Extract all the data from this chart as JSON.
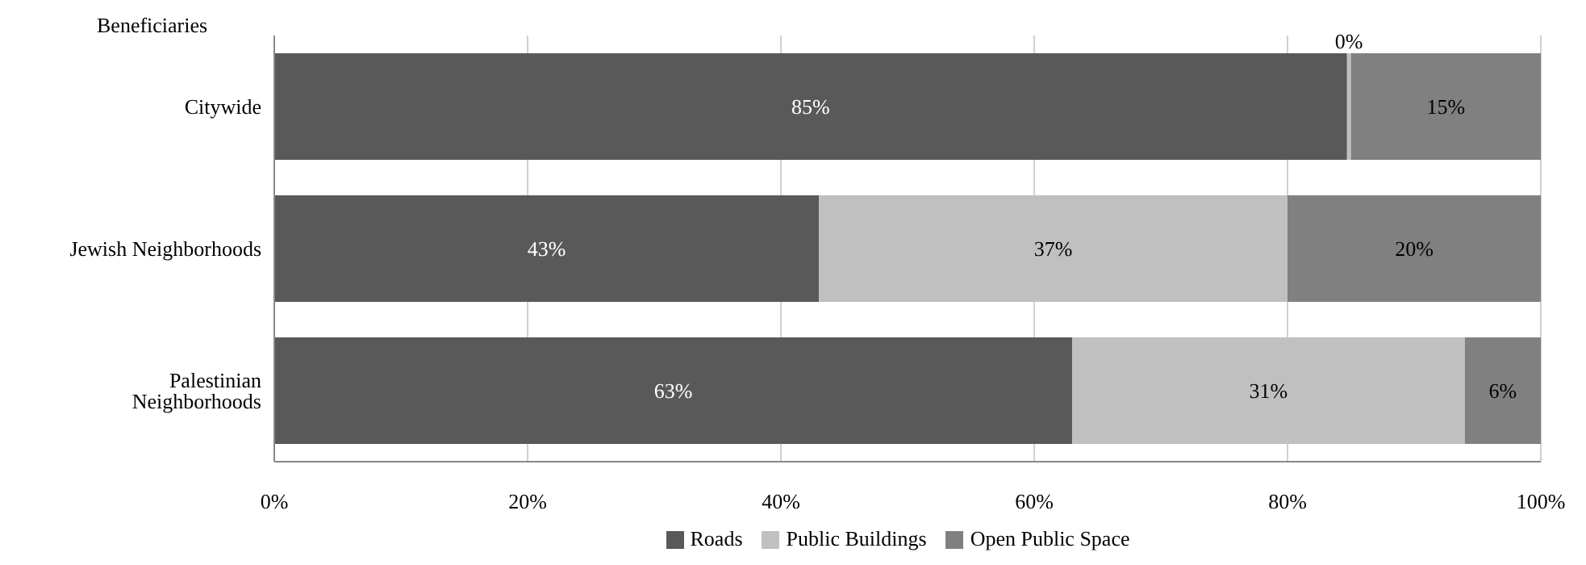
{
  "chart_data": {
    "type": "bar",
    "orientation": "horizontal",
    "stacked": true,
    "ylabel": "Beneficiaries",
    "categories": [
      "Citywide",
      "Jewish Neighborhoods",
      "Palestinian Neighborhoods"
    ],
    "series": [
      {
        "name": "Roads",
        "color": "#595959",
        "values": [
          84.7,
          43,
          63
        ],
        "value_labels": [
          "85%",
          "43%",
          "63%"
        ]
      },
      {
        "name": "Public Buildings",
        "color": "#c0c0c0",
        "values": [
          0.3,
          37,
          31
        ],
        "value_labels": [
          "0%",
          "37%",
          "31%"
        ]
      },
      {
        "name": "Open Public Space",
        "color": "#808080",
        "values": [
          15,
          20,
          6
        ],
        "value_labels": [
          "15%",
          "20%",
          "6%"
        ]
      }
    ],
    "xlim": [
      0,
      100
    ],
    "xticks": [
      {
        "value": 0,
        "label": "0%"
      },
      {
        "value": 20,
        "label": "20%"
      },
      {
        "value": 40,
        "label": "40%"
      },
      {
        "value": 60,
        "label": "60%"
      },
      {
        "value": 80,
        "label": "80%"
      },
      {
        "value": 100,
        "label": "100%"
      }
    ],
    "grid": "x",
    "legend": "bottom"
  }
}
